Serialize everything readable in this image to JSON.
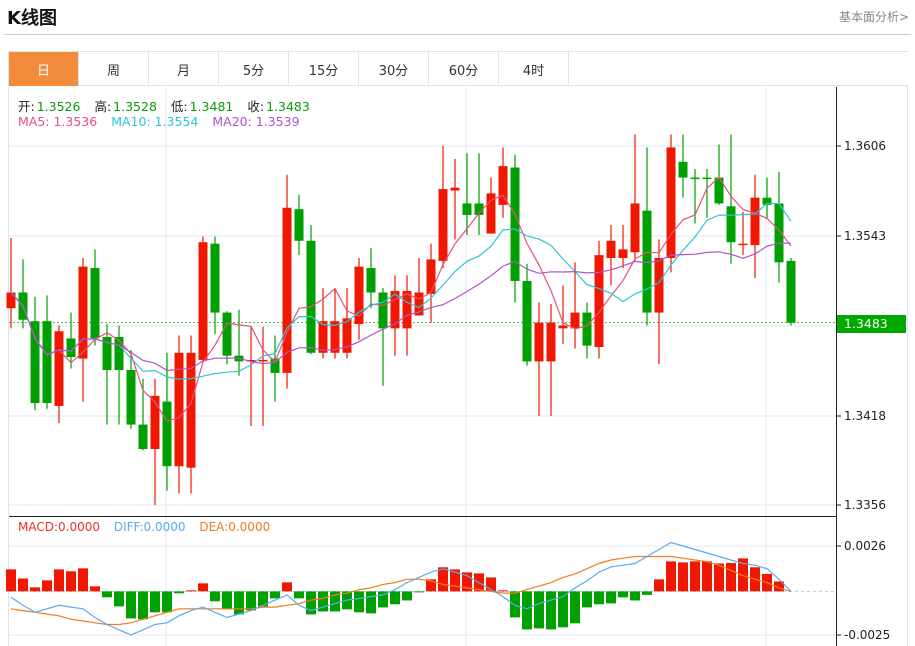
{
  "header": {
    "title": "K线图",
    "more_link": "基本面分析>"
  },
  "tabs": [
    "日",
    "周",
    "月",
    "5分",
    "15分",
    "30分",
    "60分",
    "4时"
  ],
  "active_tab": 0,
  "ohlc": {
    "open_label": "开:",
    "open": "1.3526",
    "high_label": "高:",
    "high": "1.3528",
    "low_label": "低:",
    "low": "1.3481",
    "close_label": "收:",
    "close": "1.3483"
  },
  "ma": {
    "ma5": "MA5: 1.3536",
    "ma10": "MA10: 1.3554",
    "ma20": "MA20: 1.3539"
  },
  "macd_labels": {
    "macd": "MACD:0.0000",
    "diff": "DIFF:0.0000",
    "dea": "DEA:0.0000"
  },
  "price_axis": [
    "1.3606",
    "1.3543",
    "1.3418",
    "1.3356"
  ],
  "last_price": "1.3483",
  "macd_axis": [
    "0.0026",
    "-0.0025"
  ],
  "colors": {
    "up": "#f01800",
    "down": "#00a000",
    "ma5": "#e9507c",
    "ma10": "#2ec4d8",
    "ma20": "#b153c9",
    "diff": "#5aaaf0",
    "dea": "#f57a20",
    "active_tab": "#f28c3c"
  },
  "chart_data": {
    "type": "candlestick",
    "price_range": [
      1.3356,
      1.3606
    ],
    "candles": [
      [
        1.3493,
        1.3542,
        1.3479,
        1.3504
      ],
      [
        1.3504,
        1.3527,
        1.3479,
        1.3485
      ],
      [
        1.3484,
        1.3501,
        1.3422,
        1.3427
      ],
      [
        1.3484,
        1.3502,
        1.3423,
        1.3427
      ],
      [
        1.3425,
        1.3481,
        1.3413,
        1.3477
      ],
      [
        1.3472,
        1.349,
        1.3451,
        1.3459
      ],
      [
        1.3458,
        1.3528,
        1.3428,
        1.3522
      ],
      [
        1.3521,
        1.3534,
        1.3467,
        1.3472
      ],
      [
        1.3473,
        1.3482,
        1.3412,
        1.345
      ],
      [
        1.3473,
        1.3481,
        1.3412,
        1.345
      ],
      [
        1.345,
        1.3464,
        1.3409,
        1.3412
      ],
      [
        1.3412,
        1.3444,
        1.3394,
        1.3395
      ],
      [
        1.3395,
        1.3444,
        1.3356,
        1.3432
      ],
      [
        1.3428,
        1.3462,
        1.3366,
        1.3383
      ],
      [
        1.3383,
        1.3474,
        1.3364,
        1.3462
      ],
      [
        1.3382,
        1.3474,
        1.3364,
        1.3462
      ],
      [
        1.3457,
        1.3543,
        1.3456,
        1.3539
      ],
      [
        1.3538,
        1.3543,
        1.3475,
        1.349
      ],
      [
        1.349,
        1.3491,
        1.3454,
        1.346
      ],
      [
        1.346,
        1.3492,
        1.3446,
        1.3456
      ],
      [
        1.3456,
        1.348,
        1.3411,
        1.3457
      ],
      [
        1.3456,
        1.348,
        1.3411,
        1.3457
      ],
      [
        1.3458,
        1.3474,
        1.3428,
        1.3448
      ],
      [
        1.3448,
        1.3586,
        1.3437,
        1.3563
      ],
      [
        1.3562,
        1.3572,
        1.353,
        1.354
      ],
      [
        1.354,
        1.3551,
        1.3461,
        1.3462
      ],
      [
        1.3462,
        1.3507,
        1.3458,
        1.3484
      ],
      [
        1.3462,
        1.3507,
        1.3458,
        1.3484
      ],
      [
        1.3462,
        1.3507,
        1.3458,
        1.3486
      ],
      [
        1.3482,
        1.3528,
        1.3471,
        1.3522
      ],
      [
        1.3521,
        1.3535,
        1.3493,
        1.3504
      ],
      [
        1.3504,
        1.3507,
        1.3439,
        1.3479
      ],
      [
        1.3479,
        1.3516,
        1.346,
        1.3505
      ],
      [
        1.3479,
        1.3516,
        1.346,
        1.3505
      ],
      [
        1.3488,
        1.3528,
        1.3488,
        1.3504
      ],
      [
        1.3503,
        1.3538,
        1.3483,
        1.3527
      ],
      [
        1.3526,
        1.3606,
        1.3521,
        1.3576
      ],
      [
        1.3575,
        1.3597,
        1.3541,
        1.3577
      ],
      [
        1.3566,
        1.3601,
        1.3544,
        1.3558
      ],
      [
        1.3566,
        1.3601,
        1.3544,
        1.3558
      ],
      [
        1.3545,
        1.3584,
        1.3545,
        1.3573
      ],
      [
        1.3565,
        1.3605,
        1.3556,
        1.3592
      ],
      [
        1.3591,
        1.36,
        1.3497,
        1.3512
      ],
      [
        1.3512,
        1.3524,
        1.3453,
        1.3456
      ],
      [
        1.3456,
        1.3497,
        1.3418,
        1.3483
      ],
      [
        1.3456,
        1.3496,
        1.3418,
        1.3483
      ],
      [
        1.3479,
        1.3509,
        1.3468,
        1.3481
      ],
      [
        1.3479,
        1.3525,
        1.3465,
        1.349
      ],
      [
        1.349,
        1.3497,
        1.3458,
        1.3467
      ],
      [
        1.3466,
        1.354,
        1.3458,
        1.353
      ],
      [
        1.3528,
        1.3551,
        1.3509,
        1.354
      ],
      [
        1.3528,
        1.3551,
        1.3521,
        1.3534
      ],
      [
        1.3532,
        1.3614,
        1.3526,
        1.3566
      ],
      [
        1.3561,
        1.3605,
        1.3481,
        1.349
      ],
      [
        1.349,
        1.3541,
        1.3454,
        1.3528
      ],
      [
        1.3528,
        1.3614,
        1.3518,
        1.3605
      ],
      [
        1.3595,
        1.3614,
        1.357,
        1.3584
      ],
      [
        1.3584,
        1.359,
        1.3552,
        1.3583
      ],
      [
        1.3584,
        1.359,
        1.3556,
        1.3583
      ],
      [
        1.3584,
        1.3607,
        1.3565,
        1.3566
      ],
      [
        1.3564,
        1.3614,
        1.3524,
        1.3539
      ],
      [
        1.3537,
        1.356,
        1.353,
        1.3538
      ],
      [
        1.3537,
        1.3586,
        1.3514,
        1.357
      ],
      [
        1.357,
        1.3584,
        1.3556,
        1.3565
      ],
      [
        1.3566,
        1.3588,
        1.3511,
        1.3525
      ],
      [
        1.3526,
        1.3528,
        1.3481,
        1.3483
      ]
    ],
    "macd_range": [
      -0.0025,
      0.0026
    ],
    "macd": [
      0.00126,
      0.00074,
      0.00023,
      0.00063,
      0.00126,
      0.00115,
      0.00132,
      0.00029,
      -0.00034,
      -0.00086,
      -0.00155,
      -0.0016,
      -0.0012,
      -0.0012,
      -0.00011,
      6e-05,
      0.00046,
      -0.00057,
      -0.00103,
      -0.00132,
      -0.00109,
      -0.00086,
      -0.0004,
      0.00052,
      -0.0004,
      -0.00132,
      -0.00115,
      -0.00115,
      -0.00103,
      -0.0012,
      -0.00126,
      -0.00092,
      -0.00074,
      -0.00052,
      -3e-05,
      0.00069,
      0.00138,
      0.00126,
      0.00109,
      0.00103,
      0.0008,
      6e-05,
      -0.00149,
      -0.00218,
      -0.00212,
      -0.00218,
      -0.00206,
      -0.00183,
      -0.00092,
      -0.00074,
      -0.00069,
      -0.00034,
      -0.00052,
      -0.0002,
      0.00069,
      0.00172,
      0.00166,
      0.00172,
      0.00172,
      0.0016,
      0.00163,
      0.00189,
      0.00138,
      0.001,
      0.00057,
      0
    ],
    "diff": [
      -0.00034,
      -0.0008,
      -0.0012,
      -0.001,
      -0.0008,
      -0.0009,
      -0.001,
      -0.0015,
      -0.0019,
      -0.0022,
      -0.0025,
      -0.0022,
      -0.0019,
      -0.0018,
      -0.0014,
      -0.0011,
      -0.0009,
      -0.0012,
      -0.0015,
      -0.0013,
      -0.0011,
      -0.0008,
      -0.0005,
      -0.0002,
      -0.0008,
      -0.0011,
      -0.0009,
      -0.0007,
      -0.0005,
      -0.0004,
      -0.0003,
      -0.0002,
      0.0001,
      0.0005,
      0.0008,
      0.0011,
      0.0013,
      0.0011,
      0.0009,
      0.0005,
      0.0001,
      -0.0003,
      -0.0008,
      -0.001,
      -0.0007,
      -0.0005,
      -0.0003,
      0.0002,
      0.0006,
      0.0011,
      0.0014,
      0.0015,
      0.0016,
      0.002,
      0.0024,
      0.0028,
      0.0026,
      0.0024,
      0.0022,
      0.002,
      0.0018,
      0.0016,
      0.0015,
      0.0013,
      0.0007,
      0
    ],
    "dea": [
      -0.001,
      -0.0011,
      -0.0012,
      -0.0013,
      -0.0014,
      -0.0016,
      -0.0017,
      -0.0018,
      -0.0019,
      -0.0019,
      -0.0018,
      -0.0016,
      -0.0014,
      -0.0012,
      -0.001,
      -0.001,
      -0.001,
      -0.001,
      -0.001,
      -0.001,
      -0.001,
      -0.0009,
      -0.0009,
      -0.0008,
      -0.0007,
      -0.0005,
      -0.0004,
      -0.0002,
      -0.0001,
      0.0001,
      0.0002,
      0.0004,
      0.0005,
      0.0007,
      0.0007,
      0.0006,
      0.0004,
      0.0003,
      0.0002,
      0.0001,
      0,
      -0.0001,
      -0.0001,
      0.0001,
      0.0003,
      0.0005,
      0.0008,
      0.001,
      0.0013,
      0.0016,
      0.0018,
      0.0019,
      0.002,
      0.002,
      0.002,
      0.002,
      0.0019,
      0.0018,
      0.0017,
      0.0015,
      0.0012,
      0.0009,
      0.0007,
      0.0005,
      0.0002,
      0
    ]
  }
}
